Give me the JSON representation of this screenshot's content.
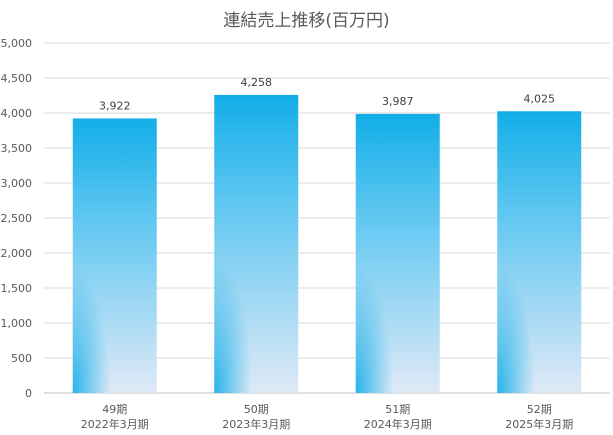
{
  "chart_data": {
    "type": "bar",
    "title": "連結売上推移(百万円)",
    "categories": [
      [
        "49期",
        "2022年3月期"
      ],
      [
        "50期",
        "2023年3月期"
      ],
      [
        "51期",
        "2024年3月期"
      ],
      [
        "52期",
        "2025年3月期"
      ]
    ],
    "values": [
      3922,
      4258,
      3987,
      4025
    ],
    "value_labels": [
      "3,922",
      "4,258",
      "3,987",
      "4,025"
    ],
    "ylim": [
      0,
      5000
    ],
    "yticks": [
      0,
      500,
      1000,
      1500,
      2000,
      2500,
      3000,
      3500,
      4000,
      4500,
      5000
    ],
    "ytick_labels": [
      "0",
      "500",
      "1,000",
      "1,500",
      "2,000",
      "2,500",
      "3,000",
      "3,500",
      "4,000",
      "4,500",
      "5,000"
    ],
    "grid": true,
    "legend": "none",
    "colors": {
      "bar_top": "#12aee8",
      "bar_bottom": "#dfe9f6",
      "grid": "#d9d9d9",
      "axis": "#bfbfbf"
    }
  }
}
